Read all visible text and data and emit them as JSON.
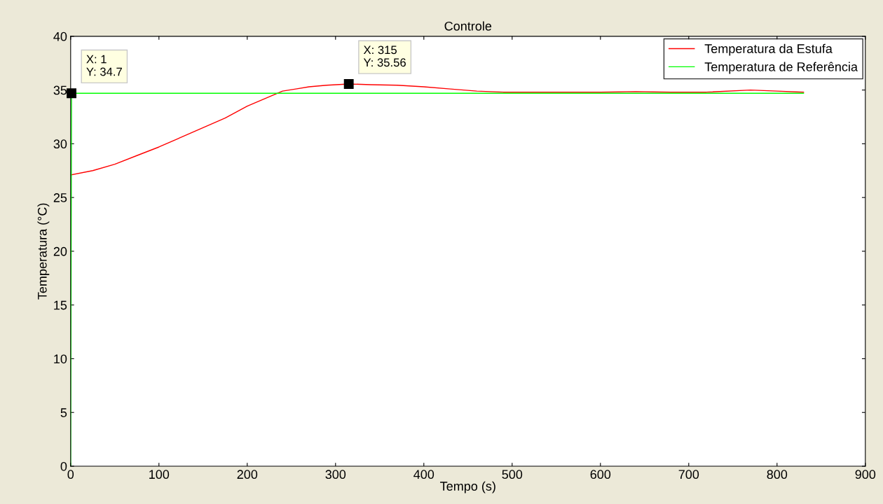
{
  "chart_data": {
    "type": "line",
    "title": "Controle",
    "xlabel": "Tempo (s)",
    "ylabel": "Temperatura (°C)",
    "xlim": [
      0,
      900
    ],
    "xticks": [
      0,
      100,
      200,
      300,
      400,
      500,
      600,
      700,
      800,
      900
    ],
    "ylim": [
      0,
      40
    ],
    "yticks": [
      0,
      5,
      10,
      15,
      20,
      25,
      30,
      35,
      40
    ],
    "grid": false,
    "legend": "top right",
    "marker": "none",
    "line_style": "solid",
    "series": [
      {
        "name": "Temperatura da Estufa",
        "color": "#ff0000",
        "x": [
          0,
          25,
          50,
          75,
          100,
          125,
          150,
          175,
          200,
          220,
          240,
          255,
          270,
          290,
          315,
          340,
          370,
          400,
          430,
          460,
          490,
          520,
          560,
          600,
          640,
          680,
          720,
          770,
          800,
          830
        ],
        "values": [
          27.1,
          27.5,
          28.1,
          28.9,
          29.7,
          30.6,
          31.5,
          32.4,
          33.5,
          34.2,
          34.9,
          35.1,
          35.3,
          35.45,
          35.56,
          35.5,
          35.45,
          35.3,
          35.1,
          34.9,
          34.8,
          34.8,
          34.8,
          34.8,
          34.85,
          34.8,
          34.8,
          35.0,
          34.9,
          34.8
        ]
      },
      {
        "name": "Temperatura de Referência",
        "color": "#00ff00",
        "x": [
          0,
          1,
          830
        ],
        "values": [
          0,
          34.7,
          34.7
        ]
      }
    ],
    "annotations": [
      {
        "text": "X: 1\nY: 34.7",
        "x": 1,
        "y": 34.7
      },
      {
        "text": "X: 315\nY: 35.56",
        "x": 315,
        "y": 35.56
      }
    ]
  }
}
